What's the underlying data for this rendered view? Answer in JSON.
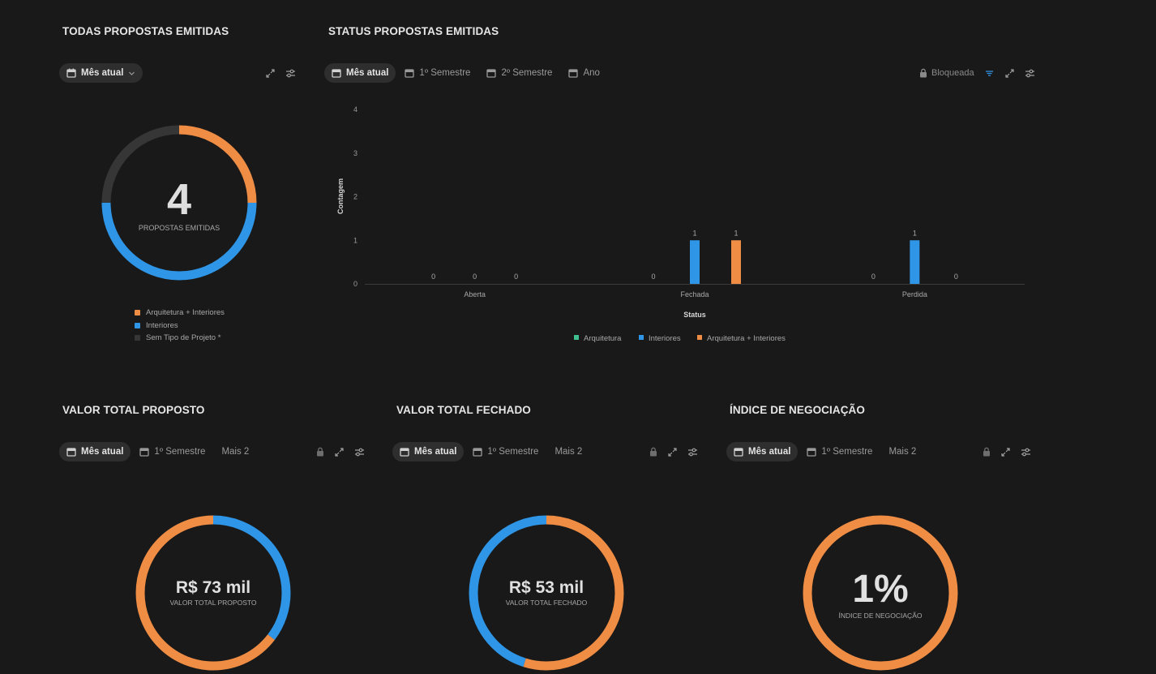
{
  "colors": {
    "orange": "#EF8D45",
    "blue": "#2E95E7",
    "gray": "#363636",
    "green": "#3FBF8F"
  },
  "panel1": {
    "title": "TODAS PROPOSTAS EMITIDAS",
    "filter": "Mês atual",
    "total": "4",
    "total_label": "PROPOSTAS EMITIDAS",
    "legend": [
      "Arquitetura + Interiores",
      "Interiores",
      "Sem Tipo de Projeto *"
    ]
  },
  "panel2": {
    "title": "STATUS PROPOSTAS EMITIDAS",
    "filters": [
      "Mês atual",
      "1º Semestre",
      "2º Semestre",
      "Ano"
    ],
    "locked_label": "Bloqueada"
  },
  "chart_data": {
    "type": "bar",
    "categories": [
      "Aberta",
      "Fechada",
      "Perdida"
    ],
    "series": [
      {
        "name": "Arquitetura",
        "values": [
          0,
          0,
          0
        ]
      },
      {
        "name": "Interiores",
        "values": [
          0,
          1,
          1
        ]
      },
      {
        "name": "Arquitetura + Interiores",
        "values": [
          0,
          1,
          0
        ]
      }
    ],
    "xlabel": "Status",
    "ylabel": "Contagem",
    "ylim": [
      0,
      4
    ],
    "yticks": [
      "0",
      "1",
      "2",
      "3",
      "4"
    ],
    "legend_position": "bottom"
  },
  "panel3": {
    "title": "VALOR TOTAL PROPOSTO",
    "filters": [
      "Mês atual",
      "1º Semestre",
      "Mais 2"
    ],
    "value": "R$ 73 mil",
    "value_label": "VALOR TOTAL PROPOSTO"
  },
  "panel4": {
    "title": "VALOR TOTAL FECHADO",
    "filters": [
      "Mês atual",
      "1º Semestre",
      "Mais 2"
    ],
    "value": "R$ 53 mil",
    "value_label": "VALOR TOTAL FECHADO"
  },
  "panel5": {
    "title": "ÍNDICE DE NEGOCIAÇÃO",
    "filters": [
      "Mês atual",
      "1º Semestre",
      "Mais 2"
    ],
    "value": "1%",
    "value_label": "ÍNDICE DE NEGOCIAÇÃO"
  }
}
